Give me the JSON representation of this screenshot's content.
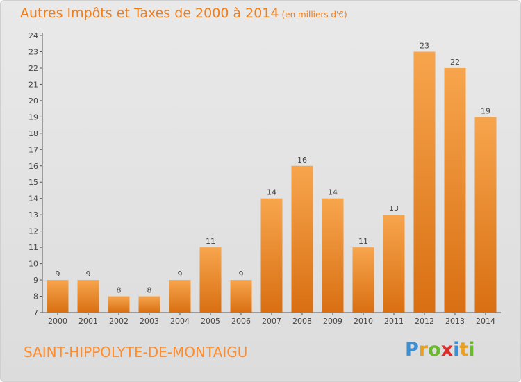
{
  "header": {
    "title": "Autres Impôts et Taxes de 2000 à 2014",
    "unit": "(en milliers d'€)"
  },
  "footer": {
    "commune": "SAINT-HIPPOLYTE-DE-MONTAIGU",
    "logo_letters": [
      "P",
      "r",
      "o",
      "x",
      "i",
      "t",
      "i"
    ],
    "logo_colors": [
      "#3b8fd4",
      "#e8a020",
      "#6ab82c",
      "#e02b2b",
      "#3b8fd4",
      "#e8a020",
      "#6ab82c"
    ]
  },
  "chart_data": {
    "type": "bar",
    "title": "Autres Impôts et Taxes de 2000 à 2014",
    "subtitle": "(en milliers d'€)",
    "categories": [
      "2000",
      "2001",
      "2002",
      "2003",
      "2004",
      "2005",
      "2006",
      "2007",
      "2008",
      "2009",
      "2010",
      "2011",
      "2012",
      "2013",
      "2014"
    ],
    "values": [
      9,
      9,
      8,
      8,
      9,
      11,
      9,
      14,
      16,
      14,
      11,
      13,
      23,
      22,
      19
    ],
    "ylim": [
      7,
      24
    ],
    "yticks": [
      7,
      8,
      9,
      10,
      11,
      12,
      13,
      14,
      15,
      16,
      17,
      18,
      19,
      20,
      21,
      22,
      23,
      24
    ],
    "grid": false,
    "bar_color": "#f08b2c",
    "data_labels": true
  }
}
